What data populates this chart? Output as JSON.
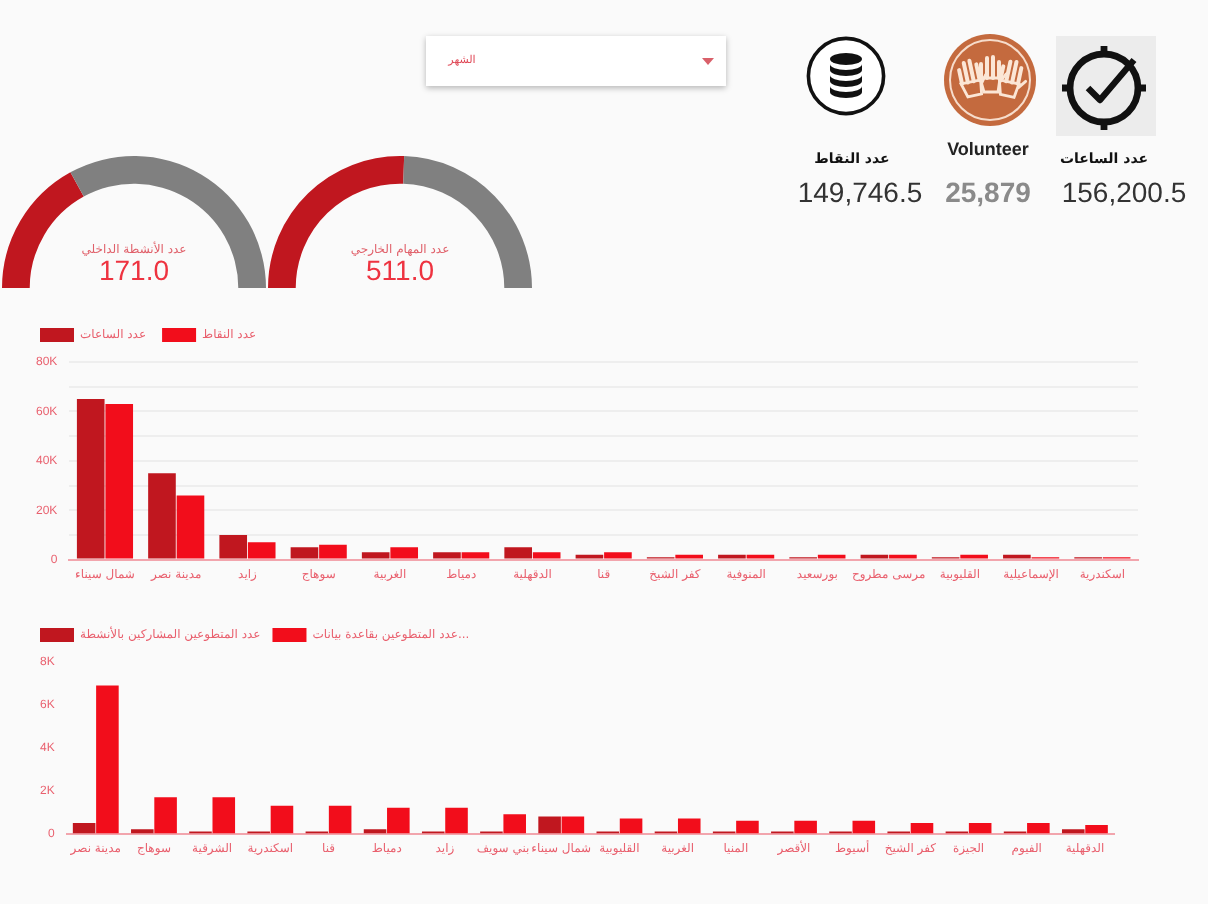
{
  "chart_data": [
    {
      "type": "other",
      "annotations": [
        "الشهر",
        "عدد النقاط",
        "149,746.5",
        "Volunteer",
        "25,879",
        "عدد الساعات",
        "156,200.5"
      ]
    },
    {
      "type": "donut",
      "title": "عدد الأنشطة الداخلي",
      "categories": [
        null,
        null
      ],
      "values": [
        34,
        66
      ],
      "colors": [
        "#c0171f",
        "#808080"
      ],
      "annotations": [
        "171.0"
      ]
    },
    {
      "type": "donut",
      "title": "عدد المهام الخارجي",
      "categories": [
        null,
        null
      ],
      "values": [
        51,
        49
      ],
      "colors": [
        "#c0171f",
        "#808080"
      ],
      "annotations": [
        "511.0"
      ]
    },
    {
      "type": "bar",
      "categories": [
        "شمال سيناء",
        "مدينة نصر",
        "زايد",
        "سوهاج",
        "الغربية",
        "دمياط",
        "الدقهلية",
        "قنا",
        "كفر الشيخ",
        "المنوفية",
        "بورسعيد",
        "مرسى مطروح",
        "القليوبية",
        "الإسماعيلية",
        "اسكندرية"
      ],
      "series": [
        {
          "name": "عدد الساعات",
          "color": "#c0171f",
          "values": [
            65000,
            35000,
            10000,
            5000,
            3000,
            3000,
            5000,
            2000,
            1000,
            2000,
            1000,
            2000,
            1000,
            2000,
            1000
          ]
        },
        {
          "name": "عدد النقاط",
          "color": "#f20d1b",
          "values": [
            63000,
            26000,
            7000,
            6000,
            5000,
            3000,
            3000,
            3000,
            2000,
            2000,
            2000,
            2000,
            2000,
            1000,
            1000
          ]
        }
      ],
      "ylim": [
        0,
        80000
      ],
      "yticks": [
        0,
        {
          "value": 10000,
          "label": null
        },
        {
          "value": 20000,
          "label": "20K"
        },
        {
          "value": 30000,
          "label": null
        },
        {
          "value": 40000,
          "label": "40K"
        },
        {
          "value": 50000,
          "label": null
        },
        {
          "value": 60000,
          "label": "60K"
        },
        {
          "value": 70000,
          "label": null
        },
        {
          "value": 80000,
          "label": "80K"
        }
      ],
      "grid": "y",
      "legend": "top left"
    },
    {
      "type": "bar",
      "categories": [
        "مدينة نصر",
        "سوهاج",
        "الشرقية",
        "اسكندرية",
        "قنا",
        "دمياط",
        "زايد",
        "بني سويف",
        "شمال سيناء",
        "القليوبية",
        "الغربية",
        "المنيا",
        "الأقصر",
        "أسيوط",
        "كفر الشيخ",
        "الجيزة",
        "الفيوم",
        "الدقهلية"
      ],
      "series": [
        {
          "name": "عدد المتطوعين المشاركين بالأنشطة",
          "color": "#c0171f",
          "values": [
            500,
            200,
            100,
            100,
            100,
            200,
            100,
            100,
            800,
            100,
            100,
            100,
            100,
            100,
            100,
            100,
            100,
            200
          ]
        },
        {
          "name": "عدد المتطوعين بقاعدة بيانات...",
          "color": "#f20d1b",
          "values": [
            6900,
            1700,
            1700,
            1300,
            1300,
            1200,
            1200,
            900,
            800,
            700,
            700,
            600,
            600,
            600,
            500,
            500,
            500,
            400
          ]
        }
      ],
      "ylim": [
        0,
        8000
      ],
      "yticks": [
        0,
        {
          "value": 2000,
          "label": "2K"
        },
        {
          "value": 4000,
          "label": "4K"
        },
        {
          "value": 6000,
          "label": "6K"
        },
        {
          "value": 8000,
          "label": "8K"
        }
      ],
      "legend": "top left"
    }
  ]
}
